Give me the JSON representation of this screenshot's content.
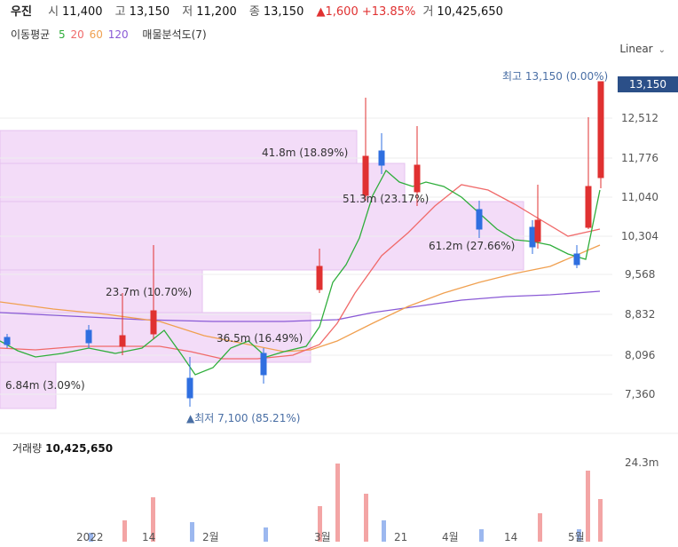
{
  "header": {
    "name": "우진",
    "open_label": "시",
    "open": "11,400",
    "high_label": "고",
    "high": "13,150",
    "low_label": "저",
    "low": "11,200",
    "close_label": "종",
    "close": "13,150",
    "change": "▲1,600 +13.85%",
    "volume_label": "거",
    "volume": "10,425,650"
  },
  "ma": {
    "label": "이동평균",
    "p5": "5",
    "p20": "20",
    "p60": "60",
    "p120": "120",
    "colors": {
      "p5": "#2fae3b",
      "p20": "#f06a6a",
      "p60": "#f0a050",
      "p120": "#8a5ad6"
    },
    "volume_profile": "매물분석도(7)"
  },
  "scale_toggle": "Linear",
  "y_ticks": [
    "12,512",
    "11,776",
    "11,040",
    "10,304",
    "9,568",
    "8,832",
    "8,096",
    "7,360"
  ],
  "current_price_tag": "13,150",
  "volume_axis_tick": "24.3m",
  "x_ticks": [
    "2022",
    "14",
    "2월",
    "3월",
    "21",
    "4월",
    "14",
    "5월"
  ],
  "annotations": {
    "high": "최고 13,150 (0.00%)",
    "low": "▲최저 7,100 (85.21%)"
  },
  "volume_profile_labels": [
    "41.8m (18.89%)",
    "51.3m (23.17%)",
    "61.2m (27.66%)",
    "23.7m (10.70%)",
    "36.5m (16.49%)",
    "6.84m (3.09%)"
  ],
  "volume_title": {
    "label": "거래량",
    "value": "10,425,650"
  },
  "colors": {
    "up": "#e03131",
    "down": "#2f6fe0",
    "profile": "#f3dcf8",
    "tag": "#2b4f88"
  }
}
